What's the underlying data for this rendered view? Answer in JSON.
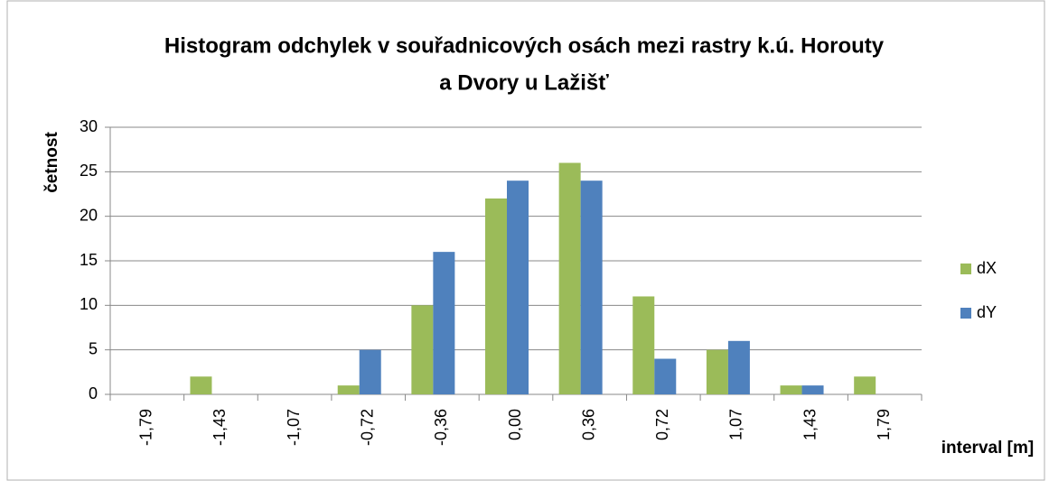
{
  "chart_data": {
    "type": "bar",
    "title": [
      "Histogram odchylek v souřadnicových osách mezi rastry k.ú. Horouty",
      "a Dvory u Lažišť"
    ],
    "y_label": "četnost",
    "x_label": "interval [m]",
    "categories": [
      "-1,79",
      "-1,43",
      "-1,07",
      "-0,72",
      "-0,36",
      "0,00",
      "0,36",
      "0,72",
      "1,07",
      "1,43",
      "1,79"
    ],
    "series": [
      {
        "name": "dX",
        "color": "#9bbb59",
        "values": [
          0,
          2,
          0,
          1,
          10,
          22,
          26,
          11,
          5,
          1,
          2
        ]
      },
      {
        "name": "dY",
        "color": "#4f81bd",
        "values": [
          0,
          0,
          0,
          5,
          16,
          24,
          24,
          4,
          6,
          1,
          0
        ]
      }
    ],
    "ylim": [
      0,
      30
    ],
    "yticks": [
      0,
      5,
      10,
      15,
      20,
      25,
      30
    ],
    "grid": true,
    "legend": "right"
  }
}
